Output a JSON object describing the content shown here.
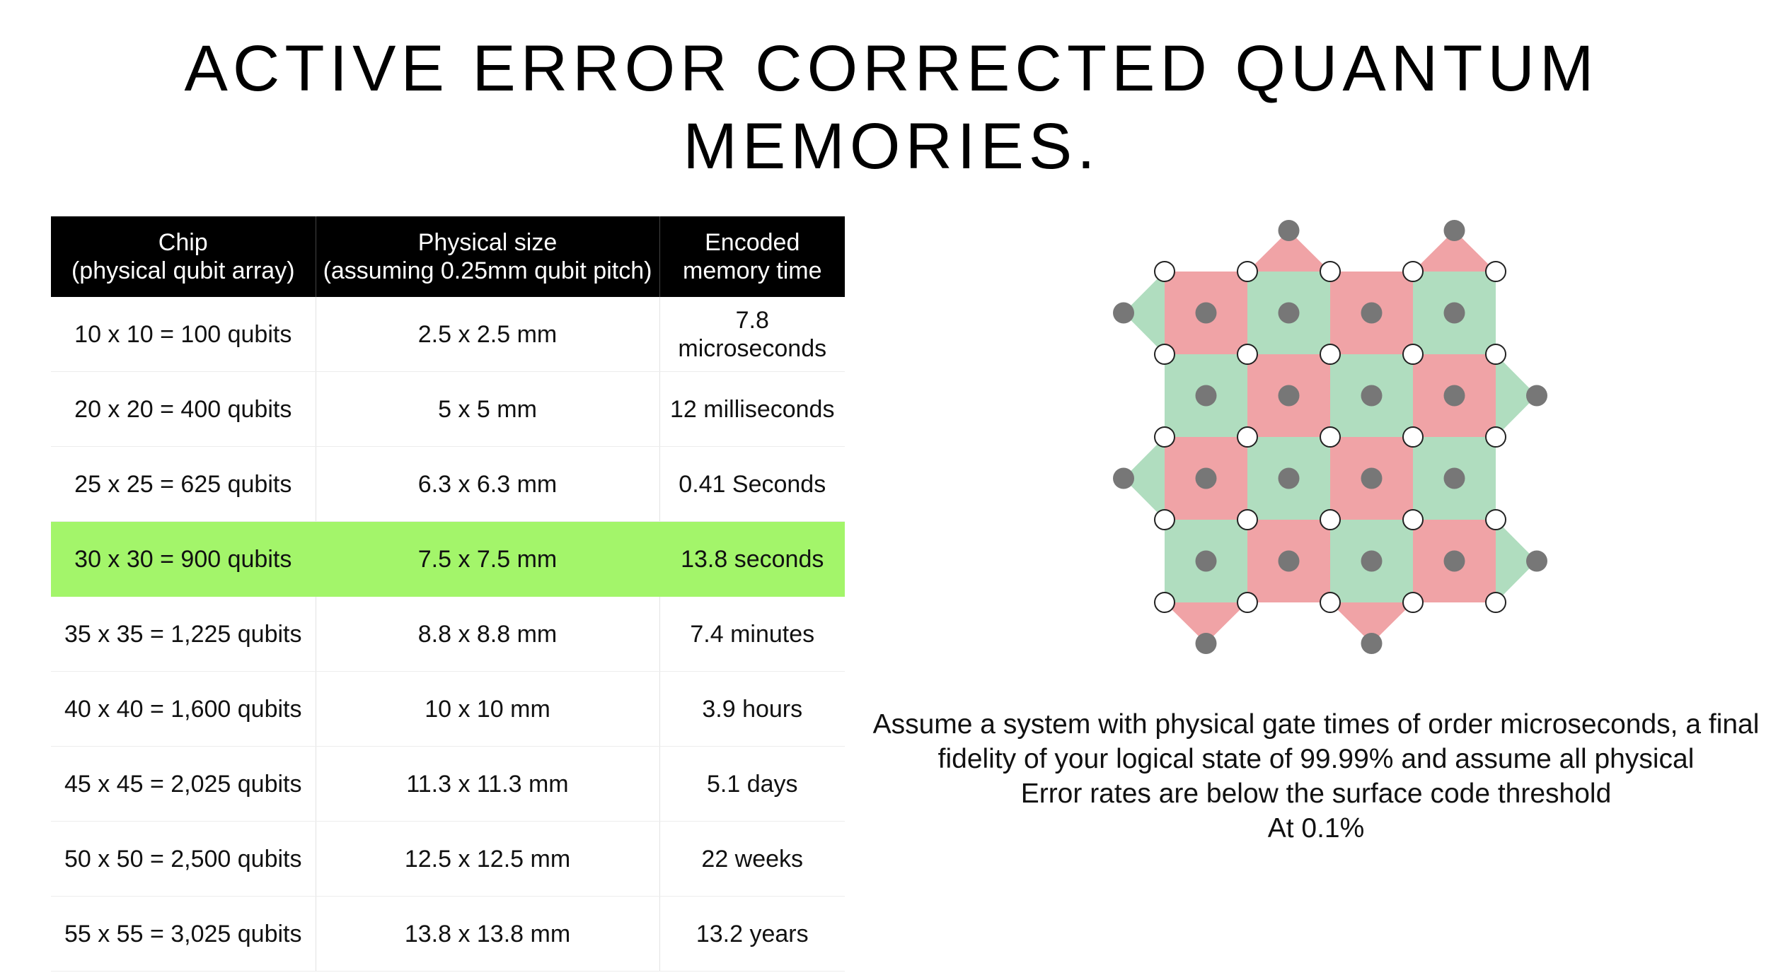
{
  "title": {
    "line1": "ACTIVE ERROR CORRECTED QUANTUM",
    "line2": "MEMORIES."
  },
  "table": {
    "headers": [
      {
        "line1": "Chip",
        "line2": "(physical qubit array)"
      },
      {
        "line1": "Physical size",
        "line2": "(assuming 0.25mm qubit pitch)"
      },
      {
        "line1": "Encoded",
        "line2": "memory time"
      }
    ],
    "highlight_color": "#a3f56a",
    "rows": [
      {
        "chip": "10 x 10 = 100 qubits",
        "size": "2.5 x 2.5 mm",
        "time": "7.8 microseconds"
      },
      {
        "chip": "20 x 20 = 400 qubits",
        "size": "5 x 5 mm",
        "time": "12 milliseconds"
      },
      {
        "chip": "25 x 25 = 625 qubits",
        "size": "6.3 x 6.3 mm",
        "time": "0.41 Seconds"
      },
      {
        "chip": "30 x 30 = 900 qubits",
        "size": "7.5 x 7.5 mm",
        "time": "13.8 seconds",
        "highlighted": true
      },
      {
        "chip": "35 x 35 = 1,225 qubits",
        "size": "8.8 x 8.8 mm",
        "time": "7.4 minutes"
      },
      {
        "chip": "40 x 40 = 1,600 qubits",
        "size": "10 x 10 mm",
        "time": "3.9 hours"
      },
      {
        "chip": "45 x 45 = 2,025 qubits",
        "size": "11.3 x 11.3 mm",
        "time": "5.1 days"
      },
      {
        "chip": "50 x 50 = 2,500 qubits",
        "size": "12.5 x 12.5 mm",
        "time": "22 weeks"
      },
      {
        "chip": "55 x 55 = 3,025 qubits",
        "size": "13.8 x 13.8 mm",
        "time": "13.2 years"
      }
    ]
  },
  "diagram": {
    "grid": 4,
    "colors": {
      "red": "#f0a3a6",
      "green": "#b0ddbf",
      "measure_qubit": "#777777",
      "data_qubit_fill": "#ffffff",
      "data_qubit_stroke": "#222222"
    },
    "tiles": [
      [
        "red",
        "green",
        "red",
        "green"
      ],
      [
        "green",
        "red",
        "green",
        "red"
      ],
      [
        "red",
        "green",
        "red",
        "green"
      ],
      [
        "green",
        "red",
        "green",
        "red"
      ]
    ],
    "boundary_triangles": [
      {
        "side": "top",
        "index": 1,
        "color": "red"
      },
      {
        "side": "top",
        "index": 3,
        "color": "red"
      },
      {
        "side": "bottom",
        "index": 0,
        "color": "red"
      },
      {
        "side": "bottom",
        "index": 2,
        "color": "red"
      },
      {
        "side": "left",
        "index": 0,
        "color": "green"
      },
      {
        "side": "left",
        "index": 2,
        "color": "green"
      },
      {
        "side": "right",
        "index": 1,
        "color": "green"
      },
      {
        "side": "right",
        "index": 3,
        "color": "green"
      }
    ]
  },
  "note": {
    "lines": [
      "Assume a system with physical gate times of order microseconds, a final",
      "fidelity of your logical state of 99.99% and assume all physical",
      "Error rates are below the surface code threshold",
      "At 0.1%"
    ]
  }
}
